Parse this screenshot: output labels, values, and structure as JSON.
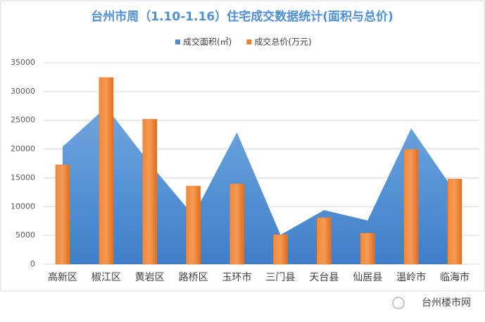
{
  "chart_data": {
    "type": "area-bar",
    "title": "台州市周（1.10-1.16）住宅成交数据统计(面积与总价)",
    "categories": [
      "高新区",
      "椒江区",
      "黄岩区",
      "路桥区",
      "玉环市",
      "三门县",
      "天台县",
      "仙居县",
      "温岭市",
      "临海市"
    ],
    "series": [
      {
        "name": "成交面积(㎡)",
        "type": "area",
        "color": "#4f8fd6",
        "values": [
          20400,
          27300,
          17500,
          8450,
          22900,
          5100,
          9400,
          7600,
          23600,
          12600
        ]
      },
      {
        "name": "成交总价(万元)",
        "type": "bar",
        "color": "#ed7d31",
        "values": [
          17260,
          32430,
          25200,
          13590,
          13950,
          5140,
          8080,
          5390,
          19950,
          14810
        ]
      }
    ],
    "ylim": [
      0,
      35000
    ],
    "yticks": [
      0,
      5000,
      10000,
      15000,
      20000,
      25000,
      30000,
      35000
    ],
    "grid": true,
    "watermark": "台州楼市网"
  }
}
